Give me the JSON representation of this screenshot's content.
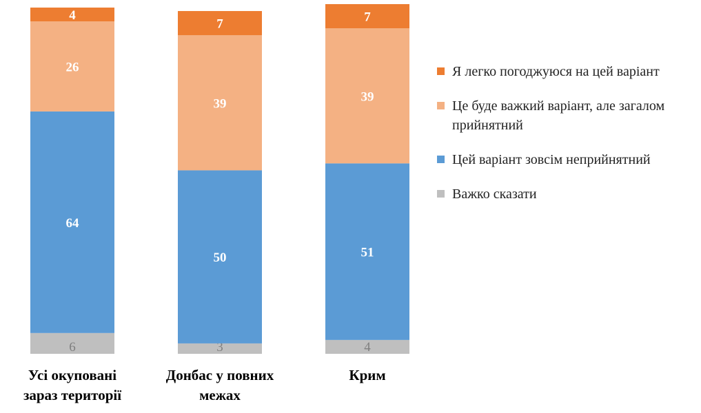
{
  "chart_data": {
    "type": "bar",
    "stacked": true,
    "orientation": "vertical",
    "categories": [
      [
        "Усі окуповані",
        "зараз території"
      ],
      [
        "Донбас у повних",
        "межах"
      ],
      [
        "Крим"
      ]
    ],
    "series": [
      {
        "name": "Важко сказати",
        "color": "#bfbfbf",
        "values": [
          6,
          3,
          4
        ]
      },
      {
        "name": "Цей варіант зовсім неприйнятний",
        "color": "#5b9bd5",
        "values": [
          64,
          50,
          51
        ]
      },
      {
        "name": "Це буде важкий варіант, але загалом прийнятний",
        "color": "#f4b183",
        "values": [
          26,
          39,
          39
        ]
      },
      {
        "name": "Я легко погоджуюся на цей варіант",
        "color": "#ed7d31",
        "values": [
          4,
          7,
          7
        ]
      }
    ],
    "data_labels": true,
    "legend_position": "right",
    "grid": false
  },
  "legend": {
    "items": [
      {
        "name": "legend-item-easily-agree",
        "label": "Я легко погоджуюся на цей варіант",
        "color": "#ed7d31"
      },
      {
        "name": "legend-item-difficult-acceptable",
        "label": "Це буде важкий варіант, але загалом прийнятний",
        "color": "#f4b183"
      },
      {
        "name": "legend-item-unacceptable",
        "label": "Цей варіант зовсім неприйнятний",
        "color": "#5b9bd5"
      },
      {
        "name": "legend-item-hard-to-say",
        "label": "Важко сказати",
        "color": "#bfbfbf"
      }
    ]
  }
}
